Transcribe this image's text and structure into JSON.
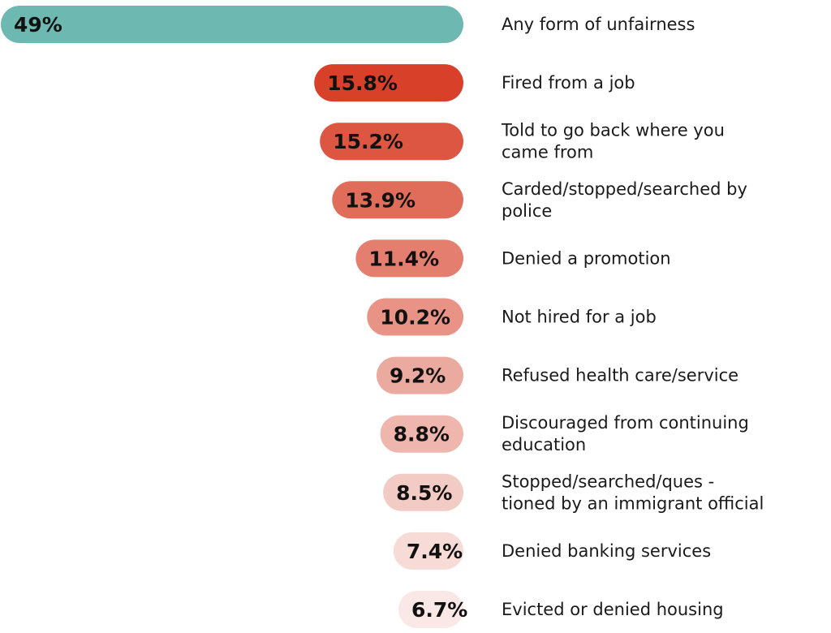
{
  "chart_data": {
    "type": "bar",
    "orientation": "horizontal",
    "title": "",
    "xlabel": "",
    "ylabel": "",
    "xlim": [
      0,
      49
    ],
    "grid": false,
    "legend": "none",
    "categories": [
      "Any form of unfairness",
      "Fired from a job",
      "Told to go back where you came from",
      "Carded/stopped/searched by police",
      "Denied a promotion",
      "Not hired for a job",
      "Refused health care/service",
      "Discouraged from continuing education",
      "Stopped/searched/ques - tioned by an immigrant official",
      "Denied banking services",
      "Evicted or denied housing"
    ],
    "label_lines": [
      [
        "Any form of unfairness"
      ],
      [
        "Fired from a job"
      ],
      [
        "Told to go back where you",
        "came from"
      ],
      [
        "Carded/stopped/searched by",
        "police"
      ],
      [
        "Denied a promotion"
      ],
      [
        "Not hired for a job"
      ],
      [
        "Refused health care/service"
      ],
      [
        "Discouraged from continuing",
        "education"
      ],
      [
        "Stopped/searched/ques  -",
        "tioned by an immigrant official"
      ],
      [
        "Denied banking services"
      ],
      [
        "Evicted or denied housing"
      ]
    ],
    "values": [
      49,
      15.8,
      15.2,
      13.9,
      11.4,
      10.2,
      9.2,
      8.8,
      8.5,
      7.4,
      6.7
    ],
    "value_labels": [
      "49%",
      "15.8%",
      "15.2%",
      "13.9%",
      "11.4%",
      "10.2%",
      "9.2%",
      "8.8%",
      "8.5%",
      "7.4%",
      "6.7%"
    ],
    "colors": [
      "#6db8b0",
      "#d9402a",
      "#dd5642",
      "#e06c5a",
      "#e47f6f",
      "#e89385",
      "#ebaa9f",
      "#eeb6ad",
      "#f3cbc5",
      "#f6dbd6",
      "#f9e8e5"
    ]
  }
}
